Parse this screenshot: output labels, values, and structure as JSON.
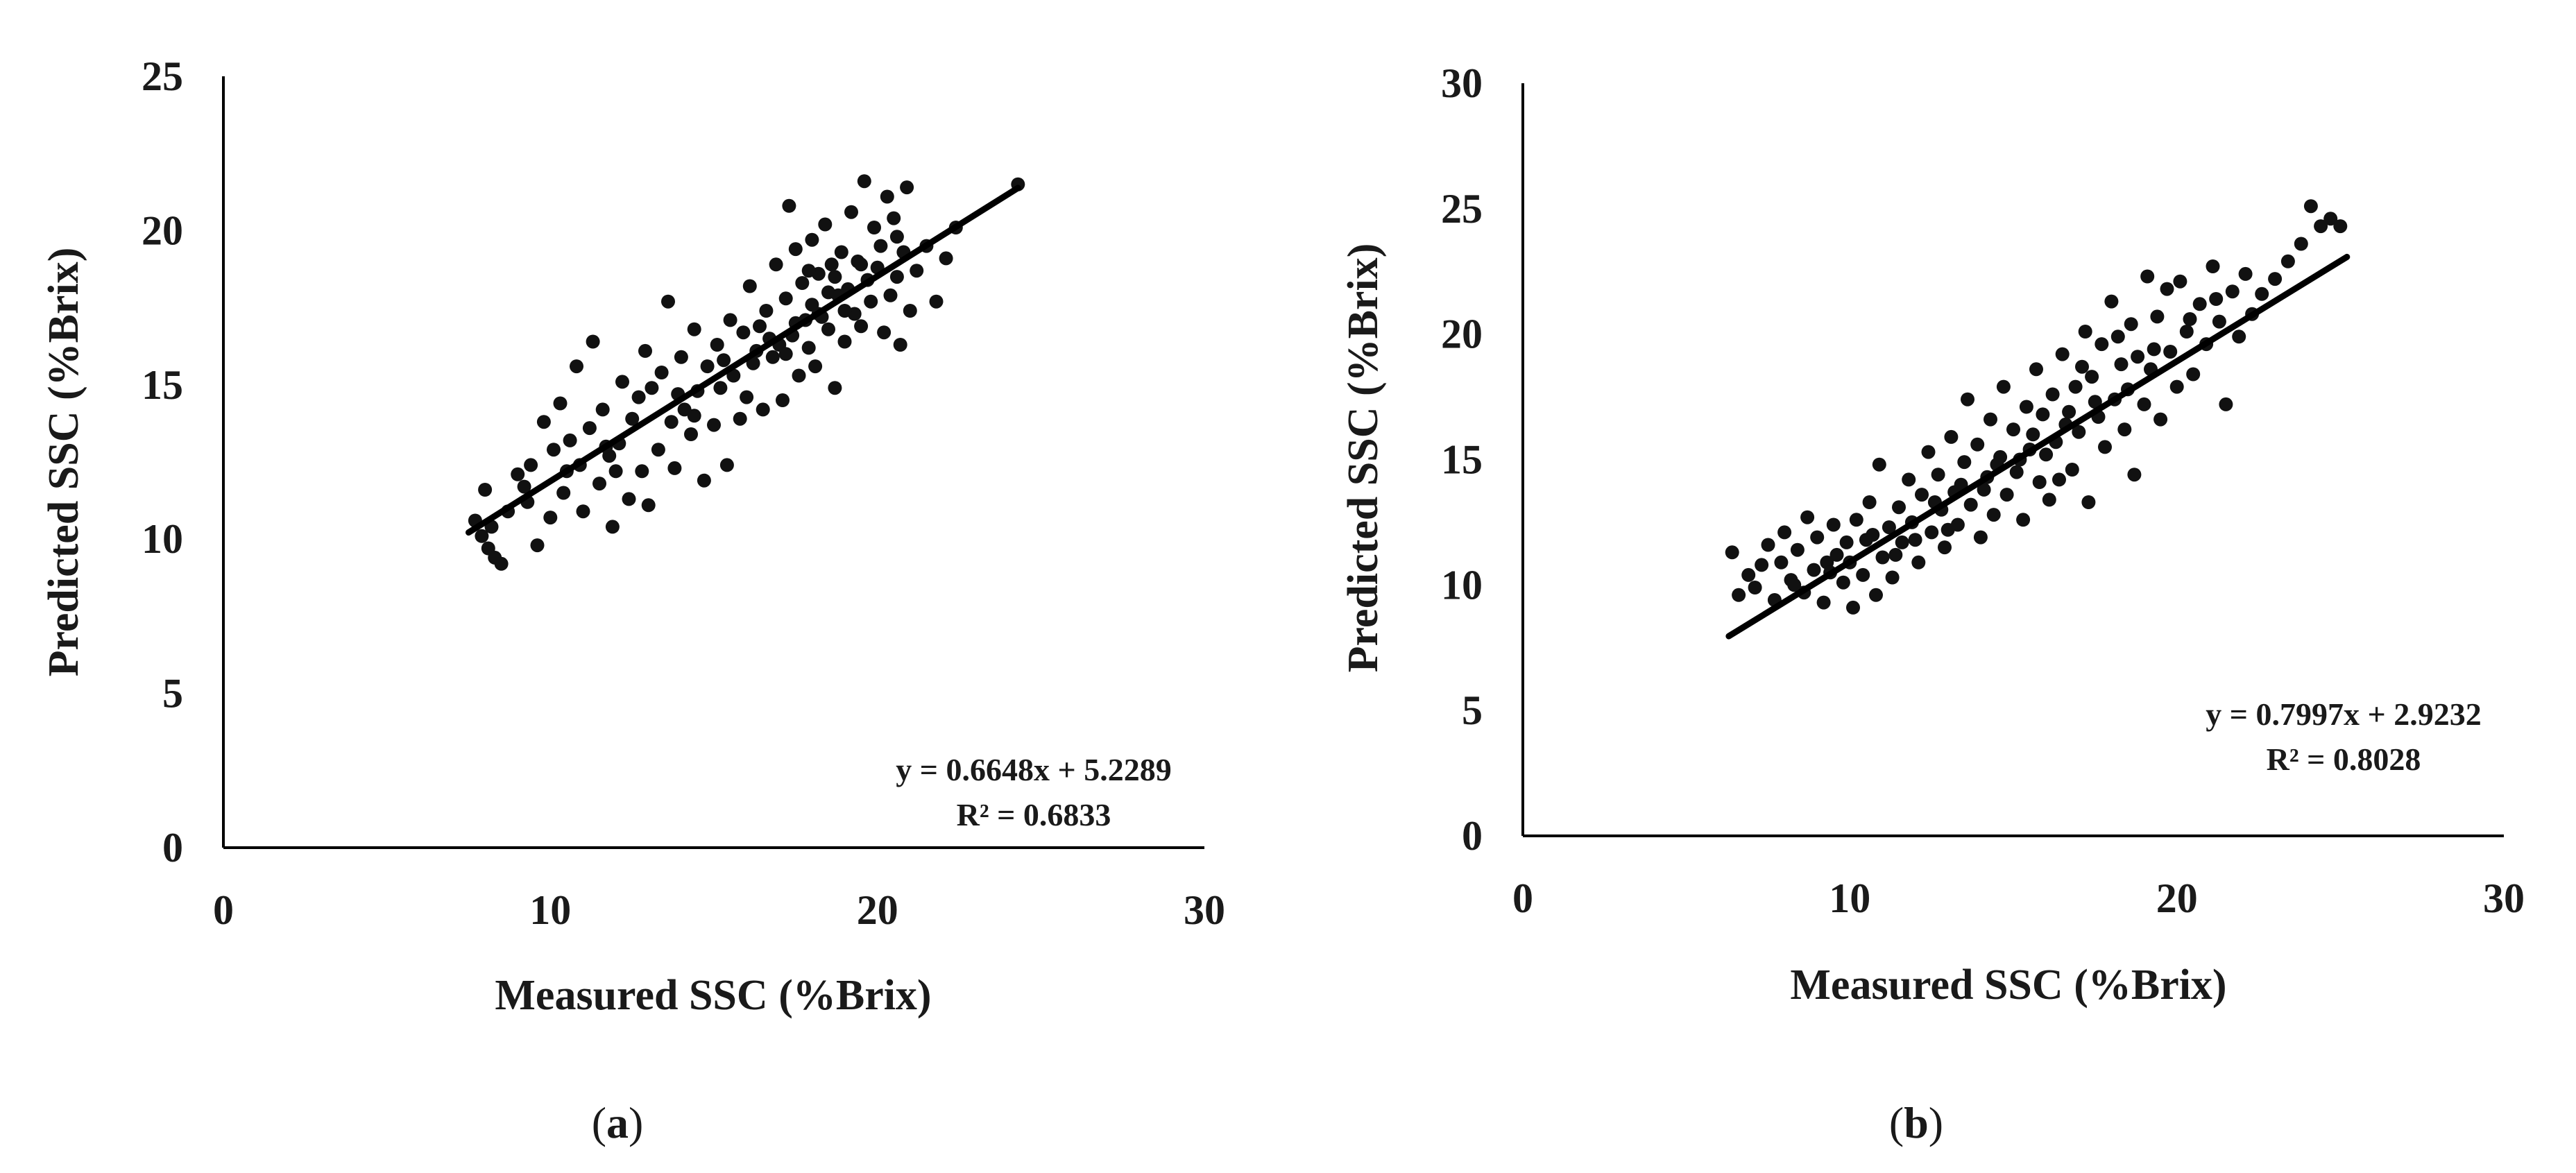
{
  "chart_data": [
    {
      "type": "scatter",
      "panel": "a",
      "caption": {
        "open": "(",
        "letter": "a",
        "close": ")"
      },
      "xlabel": "Measured SSC (%Brix)",
      "ylabel": "Predicted SSC (%Brix)",
      "xlim": [
        0,
        30
      ],
      "ylim": [
        0,
        25
      ],
      "xticks": [
        0,
        10,
        20,
        30
      ],
      "yticks": [
        0,
        5,
        10,
        15,
        20,
        25
      ],
      "grid": false,
      "trendline": {
        "slope": 0.6648,
        "intercept": 5.2289,
        "x_range": [
          7.5,
          24.3
        ]
      },
      "annotation": {
        "equation": "y = 0.6648x + 5.2289",
        "r2": "R² = 0.6833"
      },
      "point_color": "#111111",
      "points": [
        [
          7.7,
          10.6
        ],
        [
          7.9,
          10.1
        ],
        [
          8.1,
          9.7
        ],
        [
          8.3,
          9.4
        ],
        [
          8.5,
          9.2
        ],
        [
          8.0,
          11.6
        ],
        [
          8.2,
          10.4
        ],
        [
          8.7,
          10.9
        ],
        [
          9.0,
          12.1
        ],
        [
          9.2,
          11.7
        ],
        [
          9.4,
          12.4
        ],
        [
          9.6,
          9.8
        ],
        [
          9.8,
          13.8
        ],
        [
          10.0,
          10.7
        ],
        [
          10.1,
          12.9
        ],
        [
          10.3,
          14.4
        ],
        [
          10.4,
          11.5
        ],
        [
          10.6,
          13.2
        ],
        [
          10.8,
          15.6
        ],
        [
          10.9,
          12.4
        ],
        [
          11.0,
          10.9
        ],
        [
          11.2,
          13.6
        ],
        [
          11.3,
          16.4
        ],
        [
          11.5,
          11.8
        ],
        [
          11.6,
          14.2
        ],
        [
          11.8,
          12.7
        ],
        [
          11.9,
          10.4
        ],
        [
          12.1,
          13.1
        ],
        [
          12.2,
          15.1
        ],
        [
          12.4,
          11.3
        ],
        [
          12.5,
          13.9
        ],
        [
          12.7,
          14.6
        ],
        [
          12.8,
          12.2
        ],
        [
          12.9,
          16.1
        ],
        [
          13.0,
          11.1
        ],
        [
          13.1,
          14.9
        ],
        [
          13.3,
          12.9
        ],
        [
          13.4,
          15.4
        ],
        [
          13.6,
          17.7
        ],
        [
          13.7,
          13.8
        ],
        [
          13.8,
          12.3
        ],
        [
          14.0,
          15.9
        ],
        [
          14.1,
          14.2
        ],
        [
          14.3,
          13.4
        ],
        [
          14.4,
          16.8
        ],
        [
          14.5,
          14.8
        ],
        [
          14.7,
          11.9
        ],
        [
          14.8,
          15.6
        ],
        [
          15.0,
          13.7
        ],
        [
          15.1,
          16.3
        ],
        [
          15.2,
          14.9
        ],
        [
          15.4,
          12.4
        ],
        [
          15.5,
          17.1
        ],
        [
          15.6,
          15.3
        ],
        [
          15.8,
          13.9
        ],
        [
          15.9,
          16.7
        ],
        [
          16.0,
          14.6
        ],
        [
          16.1,
          18.2
        ],
        [
          16.2,
          15.7
        ],
        [
          16.4,
          16.9
        ],
        [
          16.5,
          14.2
        ],
        [
          16.6,
          17.4
        ],
        [
          16.8,
          15.9
        ],
        [
          16.9,
          18.9
        ],
        [
          17.0,
          16.3
        ],
        [
          17.1,
          14.5
        ],
        [
          17.2,
          17.8
        ],
        [
          17.3,
          20.8
        ],
        [
          17.4,
          16.6
        ],
        [
          17.5,
          19.4
        ],
        [
          17.6,
          15.3
        ],
        [
          17.7,
          18.3
        ],
        [
          17.8,
          17.1
        ],
        [
          17.9,
          16.2
        ],
        [
          18.0,
          19.7
        ],
        [
          18.0,
          17.6
        ],
        [
          18.1,
          15.6
        ],
        [
          18.2,
          18.6
        ],
        [
          18.3,
          17.2
        ],
        [
          18.4,
          20.2
        ],
        [
          18.5,
          16.8
        ],
        [
          18.6,
          18.9
        ],
        [
          18.7,
          14.9
        ],
        [
          18.8,
          17.9
        ],
        [
          18.9,
          19.3
        ],
        [
          19.0,
          16.4
        ],
        [
          19.1,
          18.1
        ],
        [
          19.2,
          20.6
        ],
        [
          19.3,
          17.3
        ],
        [
          19.4,
          19.0
        ],
        [
          19.5,
          16.9
        ],
        [
          19.6,
          21.6
        ],
        [
          19.7,
          18.4
        ],
        [
          19.8,
          17.7
        ],
        [
          19.9,
          20.1
        ],
        [
          20.0,
          18.8
        ],
        [
          20.1,
          19.5
        ],
        [
          20.2,
          16.7
        ],
        [
          20.3,
          21.1
        ],
        [
          20.4,
          17.9
        ],
        [
          20.5,
          20.4
        ],
        [
          20.6,
          18.5
        ],
        [
          20.7,
          16.3
        ],
        [
          20.8,
          19.3
        ],
        [
          20.9,
          21.4
        ],
        [
          21.2,
          18.7
        ],
        [
          21.5,
          19.5
        ],
        [
          21.8,
          17.7
        ],
        [
          22.1,
          19.1
        ],
        [
          22.4,
          20.1
        ],
        [
          12.0,
          12.2
        ],
        [
          13.9,
          14.7
        ],
        [
          16.3,
          16.1
        ],
        [
          17.5,
          17.0
        ],
        [
          18.5,
          18.0
        ],
        [
          19.0,
          17.4
        ],
        [
          17.2,
          16.0
        ],
        [
          18.2,
          17.3
        ],
        [
          15.3,
          15.8
        ],
        [
          14.4,
          14.0
        ],
        [
          11.7,
          13.0
        ],
        [
          10.5,
          12.2
        ],
        [
          9.3,
          11.2
        ],
        [
          18.7,
          18.5
        ],
        [
          19.5,
          18.9
        ],
        [
          17.9,
          18.7
        ],
        [
          16.7,
          16.5
        ],
        [
          20.6,
          19.8
        ],
        [
          21.0,
          17.4
        ],
        [
          24.3,
          21.5
        ]
      ]
    },
    {
      "type": "scatter",
      "panel": "b",
      "caption": {
        "open": "(",
        "letter": "b",
        "close": ")"
      },
      "xlabel": "Measured SSC (%Brix)",
      "ylabel": "Predicted SSC (%Brix)",
      "xlim": [
        0,
        30
      ],
      "ylim": [
        0,
        30
      ],
      "xticks": [
        0,
        10,
        20,
        30
      ],
      "yticks": [
        0,
        5,
        10,
        15,
        20,
        25,
        30
      ],
      "grid": false,
      "trendline": {
        "slope": 0.7997,
        "intercept": 2.9232,
        "x_range": [
          6.3,
          25.2
        ]
      },
      "annotation": {
        "equation": "y = 0.7997x + 2.9232",
        "r2": "R² = 0.8028"
      },
      "point_color": "#111111",
      "points": [
        [
          6.4,
          11.3
        ],
        [
          6.6,
          9.6
        ],
        [
          6.9,
          10.4
        ],
        [
          7.1,
          9.9
        ],
        [
          7.3,
          10.8
        ],
        [
          7.5,
          11.6
        ],
        [
          7.7,
          9.4
        ],
        [
          7.9,
          10.9
        ],
        [
          8.0,
          12.1
        ],
        [
          8.2,
          10.2
        ],
        [
          8.4,
          11.4
        ],
        [
          8.6,
          9.7
        ],
        [
          8.7,
          12.7
        ],
        [
          8.9,
          10.6
        ],
        [
          9.0,
          11.9
        ],
        [
          9.2,
          9.3
        ],
        [
          9.3,
          10.9
        ],
        [
          9.5,
          12.4
        ],
        [
          9.6,
          11.2
        ],
        [
          9.8,
          10.1
        ],
        [
          9.9,
          11.7
        ],
        [
          10.1,
          9.1
        ],
        [
          10.2,
          12.6
        ],
        [
          10.4,
          10.4
        ],
        [
          10.5,
          11.8
        ],
        [
          10.6,
          13.3
        ],
        [
          10.8,
          9.6
        ],
        [
          10.9,
          14.8
        ],
        [
          11.0,
          11.1
        ],
        [
          11.2,
          12.3
        ],
        [
          11.3,
          10.3
        ],
        [
          11.5,
          13.1
        ],
        [
          11.6,
          11.7
        ],
        [
          11.8,
          14.2
        ],
        [
          11.9,
          12.5
        ],
        [
          12.1,
          10.9
        ],
        [
          12.2,
          13.6
        ],
        [
          12.4,
          15.3
        ],
        [
          12.5,
          12.1
        ],
        [
          12.7,
          14.4
        ],
        [
          12.8,
          13.0
        ],
        [
          12.9,
          11.5
        ],
        [
          13.1,
          15.9
        ],
        [
          13.2,
          13.7
        ],
        [
          13.3,
          12.4
        ],
        [
          13.5,
          14.9
        ],
        [
          13.6,
          17.4
        ],
        [
          13.7,
          13.2
        ],
        [
          13.9,
          15.6
        ],
        [
          14.0,
          11.9
        ],
        [
          14.2,
          14.3
        ],
        [
          14.3,
          16.6
        ],
        [
          14.4,
          12.8
        ],
        [
          14.6,
          15.1
        ],
        [
          14.7,
          17.9
        ],
        [
          14.8,
          13.6
        ],
        [
          15.0,
          16.2
        ],
        [
          15.1,
          14.5
        ],
        [
          15.3,
          12.6
        ],
        [
          15.4,
          17.1
        ],
        [
          15.5,
          15.4
        ],
        [
          15.7,
          18.6
        ],
        [
          15.8,
          14.1
        ],
        [
          15.9,
          16.8
        ],
        [
          16.1,
          13.4
        ],
        [
          16.2,
          17.6
        ],
        [
          16.3,
          15.7
        ],
        [
          16.5,
          19.2
        ],
        [
          16.6,
          16.4
        ],
        [
          16.8,
          14.6
        ],
        [
          16.9,
          17.9
        ],
        [
          17.0,
          16.1
        ],
        [
          17.2,
          20.1
        ],
        [
          17.3,
          13.3
        ],
        [
          17.4,
          18.3
        ],
        [
          17.6,
          16.7
        ],
        [
          17.7,
          19.6
        ],
        [
          17.8,
          15.5
        ],
        [
          18.0,
          21.3
        ],
        [
          18.1,
          17.4
        ],
        [
          18.3,
          18.8
        ],
        [
          18.4,
          16.2
        ],
        [
          18.6,
          20.4
        ],
        [
          18.7,
          14.4
        ],
        [
          18.8,
          19.1
        ],
        [
          19.0,
          17.2
        ],
        [
          19.1,
          22.3
        ],
        [
          19.2,
          18.6
        ],
        [
          19.4,
          20.7
        ],
        [
          19.5,
          16.6
        ],
        [
          19.7,
          21.8
        ],
        [
          19.8,
          19.3
        ],
        [
          20.0,
          17.9
        ],
        [
          20.1,
          22.1
        ],
        [
          20.3,
          20.1
        ],
        [
          20.5,
          18.4
        ],
        [
          20.7,
          21.2
        ],
        [
          20.9,
          19.6
        ],
        [
          21.1,
          22.7
        ],
        [
          21.3,
          20.5
        ],
        [
          21.5,
          17.2
        ],
        [
          21.7,
          21.7
        ],
        [
          21.9,
          19.9
        ],
        [
          22.1,
          22.4
        ],
        [
          22.3,
          20.8
        ],
        [
          22.6,
          21.6
        ],
        [
          23.0,
          22.2
        ],
        [
          23.4,
          22.9
        ],
        [
          23.8,
          23.6
        ],
        [
          24.1,
          25.1
        ],
        [
          24.4,
          24.3
        ],
        [
          24.7,
          24.6
        ],
        [
          25.0,
          24.3
        ],
        [
          8.3,
          10.0
        ],
        [
          9.4,
          10.5
        ],
        [
          10.7,
          12.0
        ],
        [
          11.4,
          11.2
        ],
        [
          12.6,
          13.3
        ],
        [
          13.4,
          14.0
        ],
        [
          14.1,
          13.8
        ],
        [
          15.2,
          15.0
        ],
        [
          16.0,
          15.2
        ],
        [
          16.7,
          16.9
        ],
        [
          17.5,
          17.3
        ],
        [
          18.5,
          17.8
        ],
        [
          19.3,
          19.4
        ],
        [
          20.4,
          20.6
        ],
        [
          21.2,
          21.4
        ],
        [
          13.0,
          12.2
        ],
        [
          14.5,
          14.8
        ],
        [
          15.6,
          16.0
        ],
        [
          16.4,
          14.2
        ],
        [
          17.1,
          18.7
        ],
        [
          18.2,
          19.9
        ],
        [
          12.0,
          11.8
        ],
        [
          10.0,
          10.9
        ]
      ]
    }
  ]
}
